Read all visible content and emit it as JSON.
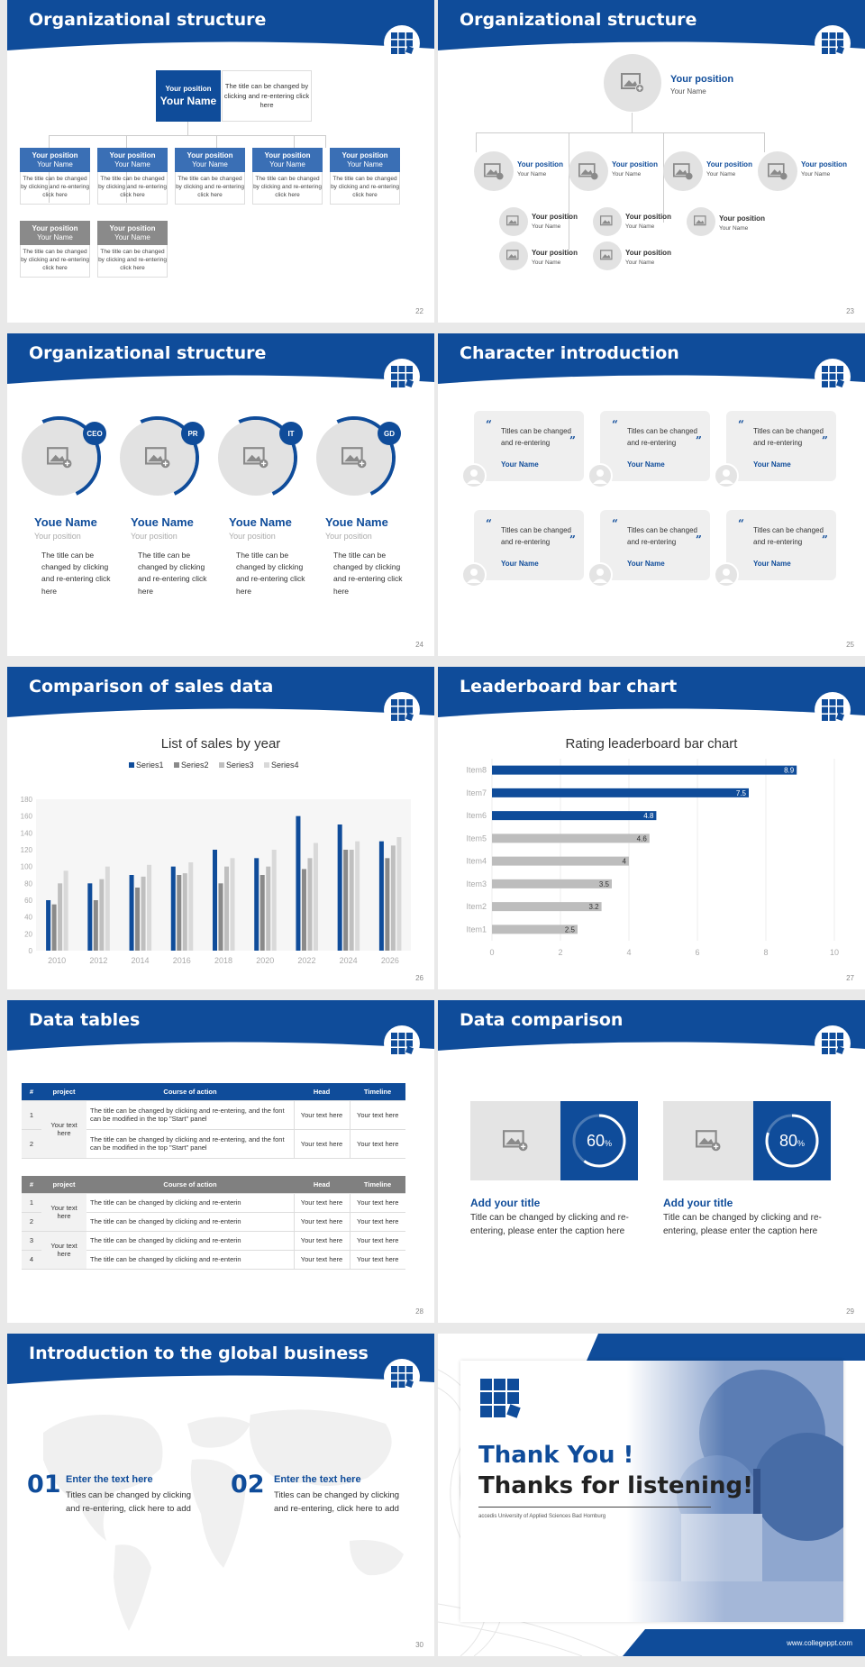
{
  "colors": {
    "primary": "#0f4c9a",
    "gray": "#8a8a8a",
    "light_gray": "#e2e2e2"
  },
  "slides": {
    "s22": {
      "title": "Organizational structure",
      "page": "22",
      "top": {
        "position": "Your position",
        "name": "Your Name",
        "desc": "The title can be changed by clicking and re-entering click here"
      },
      "cards": [
        {
          "position": "Your position",
          "name": "Your Name",
          "desc": "The title can be changed by clicking and re-entering click here"
        },
        {
          "position": "Your position",
          "name": "Your Name",
          "desc": "The title can be changed by clicking and re-entering click here"
        },
        {
          "position": "Your position",
          "name": "Your Name",
          "desc": "The title can be changed by clicking and re-entering click here"
        },
        {
          "position": "Your position",
          "name": "Your Name",
          "desc": "The title can be changed by clicking and re-entering click here"
        },
        {
          "position": "Your position",
          "name": "Your Name",
          "desc": "The title can be changed by clicking and re-entering click here"
        },
        {
          "position": "Your position",
          "name": "Your Name",
          "desc": "The title can be changed by clicking and re-entering click here"
        },
        {
          "position": "Your position",
          "name": "Your Name",
          "desc": "The title can be changed by clicking and re-entering click here"
        }
      ]
    },
    "s23": {
      "title": "Organizational structure",
      "page": "23",
      "top": {
        "position": "Your position",
        "name": "Your Name"
      },
      "level2": [
        {
          "position": "Your position",
          "name": "Your Name"
        },
        {
          "position": "Your position",
          "name": "Your Name"
        },
        {
          "position": "Your position",
          "name": "Your Name"
        },
        {
          "position": "Your position",
          "name": "Your Name"
        }
      ],
      "level3": [
        {
          "position": "Your position",
          "name": "Your Name"
        },
        {
          "position": "Your position",
          "name": "Your Name"
        },
        {
          "position": "Your position",
          "name": "Your Name"
        },
        {
          "position": "Your position",
          "name": "Your Name"
        },
        {
          "position": "Your position",
          "name": "Your Name"
        }
      ]
    },
    "s24": {
      "title": "Organizational structure",
      "page": "24",
      "people": [
        {
          "badge": "CEO",
          "name": "Youe Name",
          "position": "Your position",
          "desc": "The title can be changed by clicking and re-entering click here"
        },
        {
          "badge": "PR",
          "name": "Youe Name",
          "position": "Your position",
          "desc": "The title can be changed by clicking and re-entering click here"
        },
        {
          "badge": "IT",
          "name": "Youe Name",
          "position": "Your position",
          "desc": "The title can be changed by clicking and re-entering click here"
        },
        {
          "badge": "GD",
          "name": "Youe Name",
          "position": "Your position",
          "desc": "The title can be changed by clicking and re-entering click here"
        }
      ]
    },
    "s25": {
      "title": "Character introduction",
      "page": "25",
      "cards": [
        {
          "text": "Titles can be changed and re-entering",
          "name": "Your Name"
        },
        {
          "text": "Titles can be changed and re-entering",
          "name": "Your Name"
        },
        {
          "text": "Titles can be changed and re-entering",
          "name": "Your Name"
        },
        {
          "text": "Titles can be changed and re-entering",
          "name": "Your Name"
        },
        {
          "text": "Titles can be changed and re-entering",
          "name": "Your Name"
        },
        {
          "text": "Titles can be changed and re-entering",
          "name": "Your Name"
        }
      ]
    },
    "s26": {
      "title": "Comparison of sales data",
      "page": "26"
    },
    "s27": {
      "title": "Leaderboard bar chart",
      "page": "27"
    },
    "s28": {
      "title": "Data tables",
      "page": "28",
      "t1": {
        "headers": [
          "#",
          "project",
          "Course of action",
          "Head",
          "Timeline"
        ],
        "project": "Your text here",
        "rows": [
          {
            "n": "1",
            "action": "The title can be changed by clicking and re-entering, and the font can be modified in the top \"Start\" panel",
            "head": "Your text here",
            "time": "Your text here"
          },
          {
            "n": "2",
            "action": "The title can be changed by clicking and re-entering, and the font can be modified in the top \"Start\" panel",
            "head": "Your text here",
            "time": "Your text here"
          }
        ]
      },
      "t2": {
        "headers": [
          "#",
          "project",
          "Course of action",
          "Head",
          "Timeline"
        ],
        "project_a": "Your text here",
        "project_b": "Your text here",
        "rows": [
          {
            "n": "1",
            "action": "The title can be changed by clicking and re-enterin",
            "head": "Your text here",
            "time": "Your text here"
          },
          {
            "n": "2",
            "action": "The title can be changed by clicking and re-enterin",
            "head": "Your text here",
            "time": "Your text here"
          },
          {
            "n": "3",
            "action": "The title can be changed by clicking and re-enterin",
            "head": "Your text here",
            "time": "Your text here"
          },
          {
            "n": "4",
            "action": "The title can be changed by clicking and re-enterin",
            "head": "Your text here",
            "time": "Your text here"
          }
        ]
      }
    },
    "s29": {
      "title": "Data comparison",
      "page": "29",
      "items": [
        {
          "percent_value": 60,
          "value": "60",
          "unit": "%",
          "title": "Add your title",
          "text": "Title can be changed by clicking and re-entering, please enter the caption here"
        },
        {
          "percent_value": 80,
          "value": "80",
          "unit": "%",
          "title": "Add your title",
          "text": "Title can be changed by clicking and re-entering, please enter the caption here"
        }
      ]
    },
    "s30": {
      "title": "Introduction to the global business",
      "page": "30",
      "items": [
        {
          "num": "01",
          "title": "Enter the text here",
          "text": "Titles can be changed by clicking and re-entering, click here to add"
        },
        {
          "num": "02",
          "title": "Enter the text here",
          "text": "Titles can be changed by clicking and re-entering, click here to add"
        }
      ]
    },
    "s31": {
      "thank": "Thank You !",
      "thanks": "Thanks for listening!",
      "subtitle": "accedis University of Applied Sciences Bad Homburg",
      "url": "www.collegeppt.com"
    }
  },
  "chart_data": [
    {
      "type": "bar",
      "title": "List of sales by year",
      "categories": [
        "2010",
        "2012",
        "2014",
        "2016",
        "2018",
        "2020",
        "2022",
        "2024",
        "2026"
      ],
      "series": [
        {
          "name": "Series1",
          "values": [
            60,
            80,
            90,
            100,
            120,
            110,
            160,
            150,
            130
          ]
        },
        {
          "name": "Series2",
          "values": [
            55,
            60,
            75,
            90,
            80,
            90,
            97,
            120,
            110
          ]
        },
        {
          "name": "Series3",
          "values": [
            80,
            85,
            88,
            92,
            100,
            100,
            110,
            120,
            125
          ]
        },
        {
          "name": "Series4",
          "values": [
            95,
            100,
            102,
            105,
            110,
            120,
            128,
            130,
            135
          ]
        }
      ],
      "yticks": [
        "0",
        "20",
        "40",
        "60",
        "80",
        "100",
        "120",
        "140",
        "160",
        "180"
      ],
      "ylim": [
        0,
        180
      ],
      "legend": "top"
    },
    {
      "type": "bar",
      "orientation": "horizontal",
      "title": "Rating leaderboard bar chart",
      "categories": [
        "Item1",
        "Item2",
        "Item3",
        "Item4",
        "Item5",
        "Item6",
        "Item7",
        "Item8"
      ],
      "values": [
        2.5,
        3.2,
        3.5,
        4,
        4.6,
        4.8,
        7.5,
        8.9
      ],
      "labels": [
        "2.5",
        "3.2",
        "3.5",
        "4",
        "4.6",
        "4.8",
        "7.5",
        "8.9"
      ],
      "xticks": [
        "0",
        "2",
        "4",
        "6",
        "8",
        "10"
      ],
      "xlim": [
        0,
        10
      ]
    }
  ]
}
